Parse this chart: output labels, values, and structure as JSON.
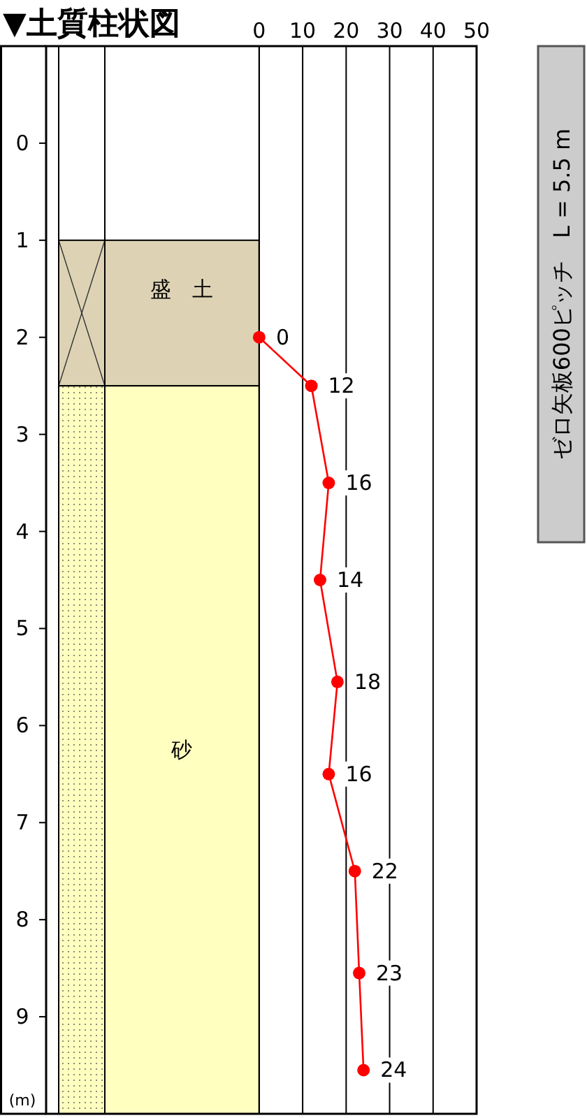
{
  "chart_data": {
    "type": "line",
    "title": "▼土質柱状図",
    "ylabel": "(m)",
    "x": [
      0,
      12,
      16,
      14,
      18,
      16,
      22,
      23,
      24
    ],
    "series": [
      {
        "color": "#ff0000",
        "values": [
          2.0,
          2.5,
          3.5,
          4.5,
          5.55,
          6.5,
          7.5,
          8.55,
          9.55
        ]
      }
    ],
    "xlim": [
      -49,
      50
    ],
    "xticks": [
      {
        "value": 0,
        "label": "0"
      },
      {
        "value": 10,
        "label": "10"
      },
      {
        "value": 20,
        "label": "20"
      },
      {
        "value": 30,
        "label": "30"
      },
      {
        "value": 40,
        "label": "40"
      },
      {
        "value": 50,
        "label": "50"
      }
    ],
    "ylim": [
      10,
      -1
    ],
    "yticks": [
      {
        "value": 0,
        "label": "0"
      },
      {
        "value": 1,
        "label": "1"
      },
      {
        "value": 2,
        "label": "2"
      },
      {
        "value": 3,
        "label": "3"
      },
      {
        "value": 4,
        "label": "4"
      },
      {
        "value": 5,
        "label": "5"
      },
      {
        "value": 6,
        "label": "6"
      },
      {
        "value": 7,
        "label": "7"
      },
      {
        "value": 8,
        "label": "8"
      },
      {
        "value": 9,
        "label": "9"
      }
    ],
    "grid": "x",
    "marker": "circle",
    "line_style": "solid",
    "bands": [
      {
        "axis": "y",
        "from": 1,
        "to": 2.5,
        "label": "盛　土",
        "color": "#ddd3b4"
      },
      {
        "axis": "y",
        "from": 2.5,
        "to": 10,
        "label": "砂",
        "color": "#ffffc0"
      }
    ],
    "annotations": [
      {
        "text": "0",
        "x": 0,
        "y": 2.0
      },
      {
        "text": "12",
        "x": 12,
        "y": 2.5
      },
      {
        "text": "16",
        "x": 16,
        "y": 3.5
      },
      {
        "text": "14",
        "x": 14,
        "y": 4.5
      },
      {
        "text": "18",
        "x": 18,
        "y": 5.55
      },
      {
        "text": "16",
        "x": 16,
        "y": 6.5
      },
      {
        "text": "22",
        "x": 22,
        "y": 7.5
      },
      {
        "text": "23",
        "x": 23,
        "y": 8.55
      },
      {
        "text": "24",
        "x": 24,
        "y": 9.55
      },
      "ゼロ矢板600ピッチ　L = 5.5 m"
    ]
  }
}
